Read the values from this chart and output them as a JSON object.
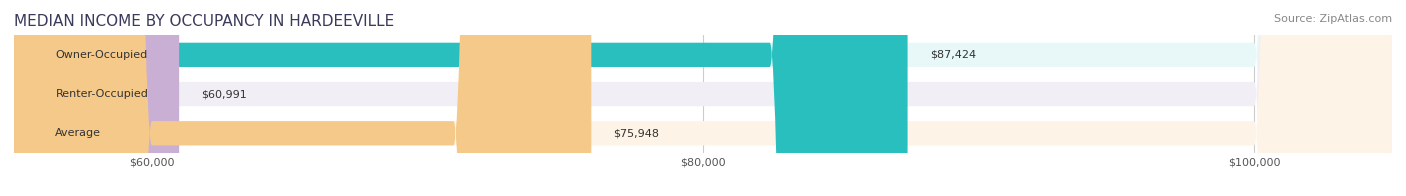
{
  "title": "MEDIAN INCOME BY OCCUPANCY IN HARDEEVILLE",
  "source": "Source: ZipAtlas.com",
  "categories": [
    "Owner-Occupied",
    "Renter-Occupied",
    "Average"
  ],
  "values": [
    87424,
    60991,
    75948
  ],
  "bar_colors": [
    "#2abfbf",
    "#c9afd4",
    "#f5c98a"
  ],
  "bar_bg_colors": [
    "#e8f8f8",
    "#f2eef5",
    "#fdf3e7"
  ],
  "label_colors": [
    "#ffffff",
    "#555555",
    "#555555"
  ],
  "value_labels": [
    "$87,424",
    "$60,991",
    "$75,948"
  ],
  "xlim": [
    55000,
    105000
  ],
  "xticks": [
    60000,
    80000,
    100000
  ],
  "xtick_labels": [
    "$60,000",
    "$80,000",
    "$100,000"
  ],
  "title_color": "#3a3a5c",
  "source_color": "#888888",
  "title_fontsize": 11,
  "source_fontsize": 8,
  "bar_label_fontsize": 8,
  "value_label_fontsize": 8,
  "tick_fontsize": 8,
  "background_color": "#ffffff"
}
